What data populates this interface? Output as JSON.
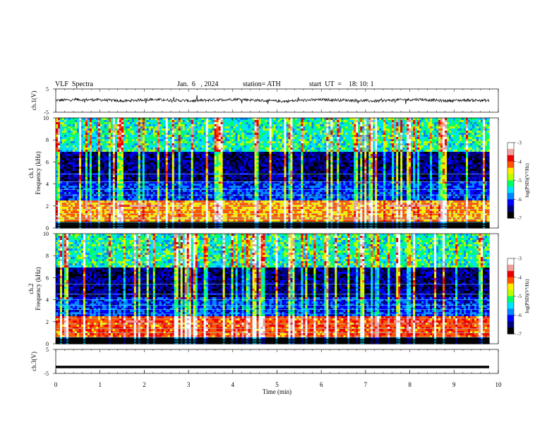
{
  "header": {
    "title": "VLF  Spectra",
    "date": "Jan.  6   , 2024",
    "station": "station= ATH",
    "start": "start  UT  =    18: 10: 1"
  },
  "chart_data": [
    {
      "id": "ch1-waveform",
      "type": "line",
      "ylabel": "ch.1(V)",
      "ylim": [
        -5,
        5
      ],
      "yticks": [
        "5",
        "-5"
      ],
      "x_range_min": [
        0,
        9.8
      ],
      "baseline_level": 0,
      "series": [
        {
          "values": [
            0.1,
            0.4,
            0.3,
            -0.2,
            0.5,
            0.2,
            -0.1,
            0.3,
            0.6,
            0.0,
            -0.3,
            0.2,
            0.4,
            0.1,
            -0.2,
            0.3,
            0.5,
            -0.1,
            0.2,
            0.0
          ]
        }
      ]
    },
    {
      "id": "ch1-spectrogram",
      "type": "heatmap",
      "ylabel": "ch.1\nFrequency  (kHz)",
      "ylim": [
        0,
        10
      ],
      "yticks": [
        "0",
        "2",
        "4",
        "6",
        "8",
        "10"
      ],
      "colorbar": {
        "label": "log(PSD)(V²/Hz)",
        "range": [
          -7,
          -3
        ],
        "ticks": [
          "-3",
          "-4",
          "-5",
          "-6",
          "-7"
        ]
      },
      "features": {
        "noise_floor_log": -6.2,
        "band_1_8khz_log": -4.3,
        "tonal_lines_khz": [
          0.3,
          0.5,
          0.8,
          1.0,
          1.3,
          1.7,
          2.0,
          2.3,
          3.0,
          3.5,
          4.2,
          4.9
        ],
        "emission_band_khz": [
          1.9,
          2.2
        ],
        "emission_windows_min": [
          [
            1.4,
            2.4
          ],
          [
            7.5,
            8.6
          ]
        ]
      }
    },
    {
      "id": "ch2-spectrogram",
      "type": "heatmap",
      "ylabel": "ch.2\nFrequency  (kHz)",
      "ylim": [
        0,
        10
      ],
      "yticks": [
        "0",
        "2",
        "4",
        "6",
        "8",
        "10"
      ],
      "colorbar": {
        "label": "log(PSD)(V²/Hz)",
        "range": [
          -7,
          -3
        ],
        "ticks": [
          "-3",
          "-4",
          "-5",
          "-6",
          "-7"
        ]
      },
      "features": {
        "noise_floor_log": -6.2,
        "band_1_8khz_log": -4.1,
        "tonal_lines_khz": [
          0.6,
          1.0,
          1.4,
          1.8,
          2.3,
          2.7,
          3.1,
          3.5,
          4.0,
          4.5,
          5.4
        ],
        "emission_band_khz": [
          1.9,
          2.1
        ],
        "emission_windows_min": [
          [
            1.4,
            2.4
          ],
          [
            7.5,
            8.6
          ]
        ]
      }
    },
    {
      "id": "ch3-waveform",
      "type": "line",
      "ylabel": "ch.3(V)",
      "ylim": [
        -5,
        5
      ],
      "yticks": [
        "5",
        "-5"
      ],
      "baseline_level": -2.3
    }
  ],
  "xaxis": {
    "label": "Time  (min)",
    "ticks": [
      "0",
      "1",
      "2",
      "3",
      "4",
      "5",
      "6",
      "7",
      "8",
      "9",
      "10"
    ],
    "range": [
      0,
      10
    ]
  },
  "colors": {
    "colormap": [
      "#000000",
      "#00007a",
      "#0000ff",
      "#0088ff",
      "#00e0ff",
      "#00ff66",
      "#b8ff00",
      "#ffee00",
      "#ff5500",
      "#ee0000",
      "#f2a0a0",
      "#ffffff"
    ]
  }
}
